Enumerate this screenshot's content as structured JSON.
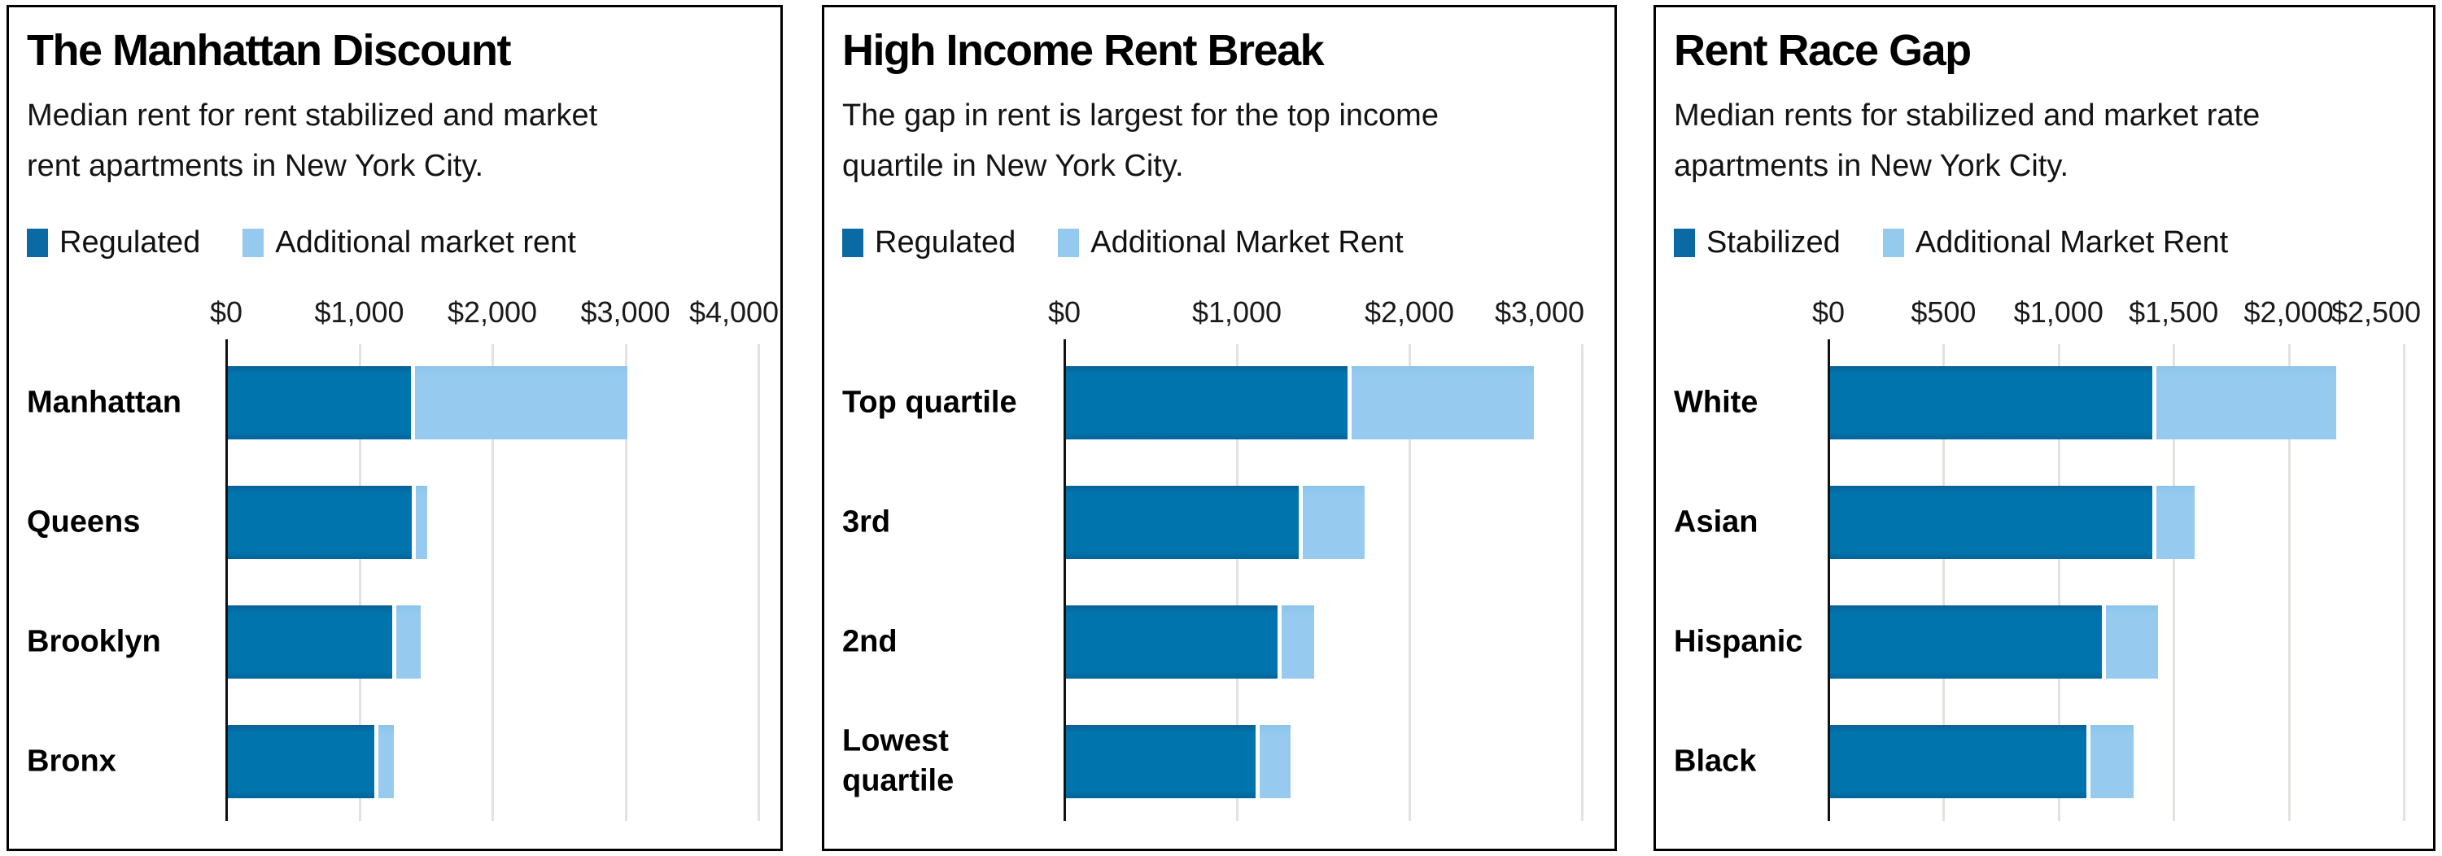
{
  "colors": {
    "regulated": "#0074ad",
    "additional_market": "#95caef",
    "gridline": "#e4e2de",
    "axis": "#111111"
  },
  "charts": [
    {
      "title": "The Manhattan Discount",
      "subtitle_line1": "Median rent for rent stabilized and market",
      "subtitle_line2": "rent apartments in New York City.",
      "legend": [
        "Regulated",
        "Additional market rent"
      ]
    },
    {
      "title": "High Income Rent Break",
      "subtitle_line1": "The gap in rent is largest for the top income",
      "subtitle_line2": "quartile in New York City.",
      "legend": [
        "Regulated",
        "Additional Market Rent"
      ]
    },
    {
      "title": "Rent Race Gap",
      "subtitle_line1": "Median rents for stabilized and market rate",
      "subtitle_line2": "apartments in New York City.",
      "legend": [
        "Stabilized",
        "Additional Market Rent"
      ]
    }
  ],
  "chart_data": [
    {
      "type": "bar",
      "orientation": "horizontal",
      "stacked": true,
      "title": "The Manhattan Discount",
      "categories": [
        "Manhattan",
        "Queens",
        "Brooklyn",
        "Bronx"
      ],
      "series": [
        {
          "name": "Regulated",
          "values": [
            1375,
            1385,
            1235,
            1100
          ]
        },
        {
          "name": "Additional market rent",
          "values": [
            1625,
            115,
            215,
            150
          ]
        }
      ],
      "totals": [
        3000,
        1500,
        1450,
        1250
      ],
      "xlim": [
        0,
        4000
      ],
      "tick_step": 1000,
      "tick_labels": [
        "$0",
        "$1,000",
        "$2,000",
        "$3,000",
        "$4,000"
      ],
      "grid": true,
      "legend_position": "top"
    },
    {
      "type": "bar",
      "orientation": "horizontal",
      "stacked": true,
      "title": "High Income Rent Break",
      "categories": [
        "Top quartile",
        "3rd",
        "2nd",
        "Lowest\nquartile"
      ],
      "series": [
        {
          "name": "Regulated",
          "values": [
            1630,
            1350,
            1225,
            1100
          ]
        },
        {
          "name": "Additional Market Rent",
          "values": [
            1080,
            380,
            215,
            200
          ]
        }
      ],
      "totals": [
        2710,
        1730,
        1440,
        1300
      ],
      "xlim": [
        0,
        3000
      ],
      "tick_step": 1000,
      "tick_labels": [
        "$0",
        "$1,000",
        "$2,000",
        "$3,000"
      ],
      "grid": true,
      "legend_position": "top"
    },
    {
      "type": "bar",
      "orientation": "horizontal",
      "stacked": true,
      "title": "Rent Race Gap",
      "categories": [
        "White",
        "Asian",
        "Hispanic",
        "Black"
      ],
      "series": [
        {
          "name": "Stabilized",
          "values": [
            1400,
            1400,
            1180,
            1115
          ]
        },
        {
          "name": "Additional Market Rent",
          "values": [
            800,
            185,
            245,
            205
          ]
        }
      ],
      "totals": [
        2200,
        1585,
        1425,
        1320
      ],
      "xlim": [
        0,
        2500
      ],
      "tick_step": 500,
      "tick_labels": [
        "$0",
        "$500",
        "$1,000",
        "$1,500",
        "$2,000",
        "$2,500"
      ],
      "grid": true,
      "legend_position": "top"
    }
  ]
}
